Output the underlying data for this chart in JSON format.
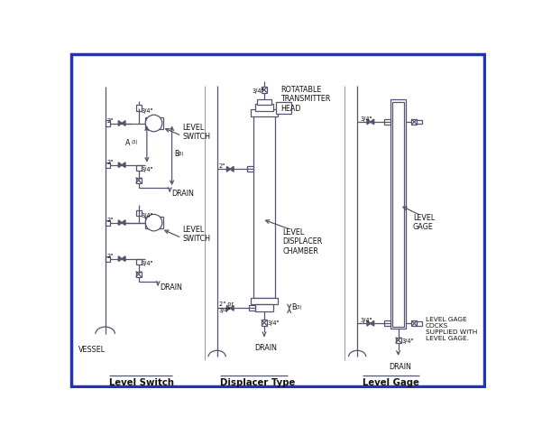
{
  "bg_color": "#ffffff",
  "border_color": "#2233bb",
  "line_color": "#555570",
  "text_color": "#111111",
  "font_size": 5.8,
  "label1": "Level Switch",
  "label2": "Displacer Type",
  "label3": "Level Gage",
  "vessel_label": "VESSEL"
}
